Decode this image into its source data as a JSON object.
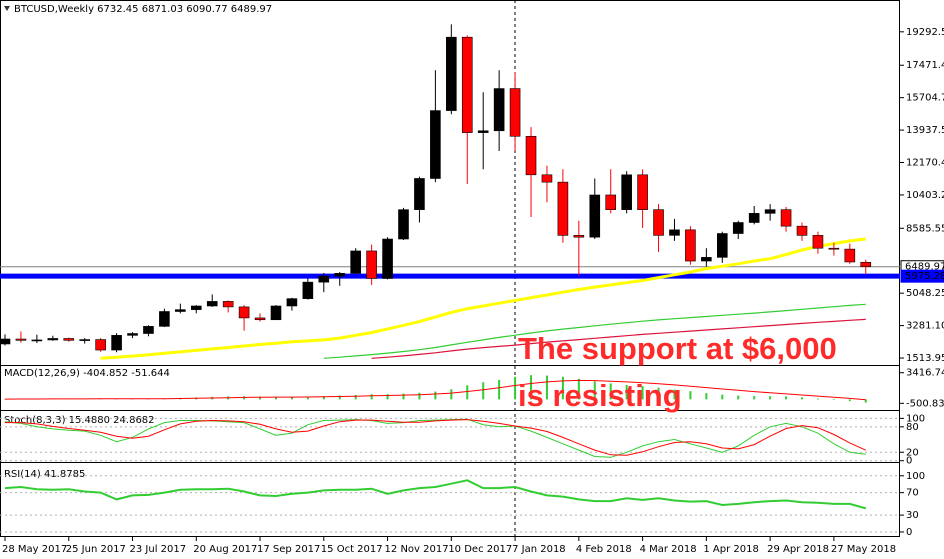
{
  "chart_data": [
    {
      "type": "candlestick",
      "title": "BTCUSD,Weekly  6732.45 6871.03 6090.77 6489.97",
      "categories": [
        "28 May 2017",
        null,
        null,
        null,
        "25 Jun 2017",
        null,
        null,
        null,
        "23 Jul 2017",
        null,
        null,
        null,
        "20 Aug 2017",
        null,
        null,
        null,
        "17 Sep 2017",
        null,
        null,
        null,
        "15 Oct 2017",
        null,
        null,
        null,
        "12 Nov 2017",
        null,
        null,
        null,
        "10 Dec 2017",
        null,
        null,
        null,
        "7 Jan 2018",
        null,
        null,
        null,
        "4 Feb 2018",
        null,
        null,
        null,
        "4 Mar 2018",
        null,
        null,
        null,
        "1 Apr 2018",
        null,
        null,
        null,
        "29 Apr 2018",
        null,
        null,
        null,
        "27 May 2018",
        null,
        null
      ],
      "open": [
        2280,
        2550,
        2480,
        2500,
        2580,
        2480,
        2520,
        1950,
        2750,
        2850,
        3240,
        4050,
        4150,
        4350,
        4600,
        4300,
        3700,
        3600,
        4350,
        4750,
        5650,
        5980,
        6130,
        7350,
        5850,
        8000,
        9600,
        11300,
        15000,
        19000,
        13800,
        13900,
        16200,
        13600,
        11500,
        11100,
        8200,
        8100,
        10400,
        9600,
        11500,
        9600,
        8200,
        8500,
        6800,
        7000,
        8300,
        8900,
        9400,
        9600,
        8700,
        8200,
        7500,
        7450,
        6732.45
      ],
      "high": [
        2800,
        2960,
        2790,
        2730,
        2620,
        2600,
        2600,
        2870,
        2920,
        3300,
        4200,
        4480,
        4400,
        4980,
        4650,
        4400,
        3950,
        4400,
        4800,
        5850,
        6150,
        6200,
        7500,
        7700,
        8100,
        9700,
        11400,
        17200,
        19700,
        19100,
        16000,
        17200,
        17100,
        14100,
        12000,
        11800,
        9000,
        11300,
        11800,
        11700,
        11800,
        9900,
        9100,
        8700,
        7500,
        8400,
        9000,
        9800,
        9900,
        9750,
        8900,
        8400,
        7800,
        7750,
        6871.03
      ],
      "low": [
        2200,
        2350,
        2330,
        2450,
        2400,
        2300,
        1850,
        1830,
        2600,
        2700,
        3200,
        3950,
        3950,
        4300,
        4000,
        3000,
        3500,
        3600,
        4100,
        4700,
        5100,
        5450,
        6100,
        5500,
        5800,
        7950,
        8900,
        11100,
        14800,
        11000,
        11800,
        12800,
        12800,
        9200,
        10000,
        7800,
        6000,
        8000,
        9400,
        9400,
        8600,
        7300,
        7900,
        6600,
        6500,
        6700,
        8000,
        8800,
        9000,
        8400,
        7900,
        7200,
        7100,
        6650,
        6090.77
      ],
      "close": [
        2550,
        2480,
        2500,
        2580,
        2480,
        2520,
        1950,
        2750,
        2850,
        3240,
        4050,
        4150,
        4350,
        4600,
        4300,
        3700,
        3600,
        4350,
        4750,
        5650,
        5980,
        6130,
        7350,
        5850,
        8000,
        9600,
        11300,
        15000,
        19000,
        13800,
        13900,
        16200,
        13600,
        11500,
        11100,
        8200,
        8100,
        10400,
        9600,
        11500,
        9600,
        8200,
        8500,
        6800,
        7000,
        8300,
        8900,
        9400,
        9600,
        8700,
        8200,
        7500,
        7450,
        6750,
        6489.97
      ],
      "up_color": "#000000",
      "down_color": "#ff0000",
      "series": [
        {
          "color": "#ffff00",
          "values": [
            null,
            null,
            null,
            null,
            null,
            null,
            1500,
            1560,
            1620,
            1690,
            1770,
            1850,
            1930,
            2010,
            2090,
            2170,
            2250,
            2320,
            2400,
            2450,
            2500,
            2600,
            2750,
            2900,
            3100,
            3300,
            3500,
            3750,
            4000,
            4200,
            4350,
            4500,
            4650,
            4800,
            4950,
            5100,
            5250,
            5380,
            5500,
            5620,
            5740,
            5900,
            6050,
            6200,
            6390,
            6520,
            6650,
            6800,
            6930,
            7150,
            7400,
            7600,
            7750,
            7900,
            8000
          ]
        },
        {
          "color": "#32cd32",
          "values": [
            null,
            null,
            null,
            null,
            null,
            null,
            null,
            null,
            null,
            null,
            null,
            null,
            null,
            null,
            null,
            null,
            null,
            null,
            null,
            null,
            1500,
            1560,
            1630,
            1700,
            1780,
            1870,
            1970,
            2090,
            2230,
            2370,
            2500,
            2640,
            2760,
            2880,
            2990,
            3090,
            3180,
            3270,
            3360,
            3440,
            3520,
            3590,
            3660,
            3720,
            3780,
            3840,
            3900,
            3960,
            4030,
            4100,
            4170,
            4240,
            4310,
            4380,
            4440
          ]
        },
        {
          "color": "#dc143c",
          "values": [
            null,
            null,
            null,
            null,
            null,
            null,
            null,
            null,
            null,
            null,
            null,
            null,
            null,
            null,
            null,
            null,
            null,
            null,
            null,
            null,
            null,
            null,
            null,
            1500,
            1560,
            1630,
            1710,
            1800,
            1900,
            2000,
            2080,
            2150,
            2220,
            2300,
            2380,
            2450,
            2520,
            2590,
            2660,
            2730,
            2800,
            2860,
            2920,
            2980,
            3040,
            3100,
            3160,
            3220,
            3280,
            3340,
            3400,
            3460,
            3510,
            3570,
            3620
          ]
        }
      ],
      "levels": [
        {
          "value": 6489.97,
          "color": "#808080"
        },
        {
          "value": 5975.28,
          "color": "#0000ff"
        }
      ],
      "annotations": [
        "The support at $6,000",
        "is resisting"
      ],
      "ylim": [
        1134,
        20918
      ],
      "yticks": [
        19292.55,
        17471.45,
        15704.75,
        13937.55,
        {
          "value": 12170.4,
          "label": "12170.40"
        },
        10403.25,
        8585.55,
        5048.25,
        {
          "value": 3281.1,
          "label": "3281.10"
        },
        1513.95
      ]
    },
    {
      "type": "macd",
      "title": "MACD(12,26,9) -404.852 -51.644",
      "values": [
        50,
        60,
        70,
        75,
        80,
        85,
        80,
        60,
        70,
        90,
        130,
        200,
        260,
        320,
        380,
        400,
        370,
        340,
        340,
        360,
        420,
        500,
        560,
        650,
        660,
        740,
        850,
        1000,
        1300,
        1800,
        2200,
        2500,
        2900,
        3100,
        3050,
        2900,
        2650,
        2300,
        2050,
        1850,
        1700,
        1500,
        1250,
        1050,
        800,
        600,
        480,
        420,
        400,
        380,
        250,
        100,
        -80,
        -220,
        -404.852
      ],
      "signal": [
        40,
        45,
        52,
        58,
        63,
        68,
        71,
        70,
        70,
        74,
        85,
        108,
        138,
        174,
        215,
        252,
        275,
        288,
        298,
        310,
        332,
        366,
        405,
        454,
        495,
        544,
        605,
        684,
        807,
        1006,
        1245,
        1496,
        1777,
        2042,
        2244,
        2375,
        2430,
        2404,
        2333,
        2236,
        2129,
        2003,
        1853,
        1692,
        1514,
        1331,
        1161,
        1000,
        850,
        700,
        560,
        420,
        280,
        130,
        -51.644
      ],
      "color": "#32cd32",
      "signal_color": "#ff0000",
      "ylim": [
        -1360,
        4150
      ],
      "yticks": [
        3416.746,
        -500.833
      ]
    },
    {
      "type": "line",
      "title": "Stoch(8,3,3) 15.4880 24.8682",
      "series": [
        {
          "color": "#32cd32",
          "values": [
            92,
            88,
            80,
            75,
            72,
            70,
            60,
            45,
            55,
            75,
            90,
            95,
            95,
            94,
            92,
            90,
            75,
            60,
            65,
            85,
            95,
            96,
            97,
            95,
            88,
            90,
            95,
            96,
            97,
            98,
            85,
            80,
            82,
            70,
            55,
            40,
            25,
            10,
            8,
            20,
            35,
            45,
            50,
            40,
            30,
            20,
            35,
            60,
            80,
            88,
            80,
            65,
            40,
            20,
            15.488
          ]
        },
        {
          "color": "#ff0000",
          "values": [
            90,
            90,
            87,
            81,
            76,
            72,
            67,
            58,
            53,
            58,
            73,
            87,
            93,
            95,
            94,
            92,
            86,
            75,
            67,
            70,
            82,
            92,
            96,
            96,
            93,
            91,
            91,
            94,
            96,
            97,
            93,
            88,
            82,
            77,
            69,
            55,
            40,
            25,
            14,
            13,
            21,
            33,
            43,
            45,
            40,
            30,
            28,
            38,
            58,
            76,
            83,
            78,
            62,
            42,
            24.8682
          ]
        }
      ],
      "ylim": [
        -3,
        115
      ],
      "yticks": [
        100,
        80,
        20,
        0
      ],
      "grid": true
    },
    {
      "type": "line",
      "title": "RSI(14) 41.8785",
      "series": [
        {
          "color": "#32cd32",
          "values": [
            78,
            80,
            76,
            75,
            76,
            72,
            70,
            58,
            65,
            66,
            70,
            75,
            76,
            76,
            77,
            72,
            65,
            64,
            68,
            70,
            74,
            75,
            75,
            77,
            68,
            74,
            78,
            80,
            86,
            92,
            78,
            78,
            80,
            72,
            65,
            63,
            58,
            55,
            55,
            60,
            57,
            60,
            56,
            54,
            55,
            48,
            50,
            53,
            55,
            56,
            53,
            52,
            50,
            50,
            41.8785
          ]
        }
      ],
      "ylim": [
        -9,
        121
      ],
      "yticks": [
        100,
        70,
        30,
        0
      ],
      "grid": true
    }
  ]
}
